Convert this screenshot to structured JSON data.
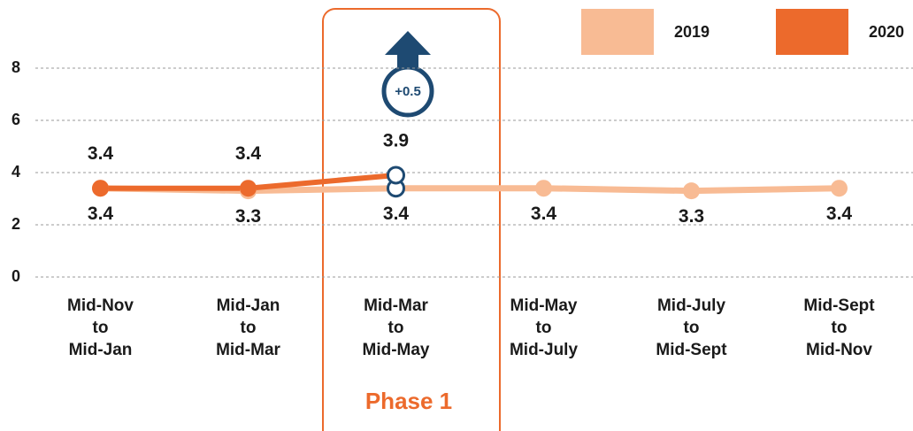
{
  "chart_data": {
    "type": "line",
    "categories": [
      [
        "Mid-Nov",
        "to",
        "Mid-Jan"
      ],
      [
        "Mid-Jan",
        "to",
        "Mid-Mar"
      ],
      [
        "Mid-Mar",
        "to",
        "Mid-May"
      ],
      [
        "Mid-May",
        "to",
        "Mid-July"
      ],
      [
        "Mid-July",
        "to",
        "Mid-Sept"
      ],
      [
        "Mid-Sept",
        "to",
        "Mid-Nov"
      ]
    ],
    "series": [
      {
        "name": "2019",
        "color": "#f8bb94",
        "values": [
          3.4,
          3.3,
          3.4,
          3.4,
          3.3,
          3.4
        ]
      },
      {
        "name": "2020",
        "color": "#ec6a2c",
        "values": [
          3.4,
          3.4,
          3.9,
          null,
          null,
          null
        ]
      }
    ],
    "ylim": [
      0,
      8
    ],
    "yticks": [
      0,
      2,
      4,
      6,
      8
    ],
    "grid": true,
    "annotations": {
      "change": "+0.5",
      "phase": "Phase 1"
    }
  }
}
